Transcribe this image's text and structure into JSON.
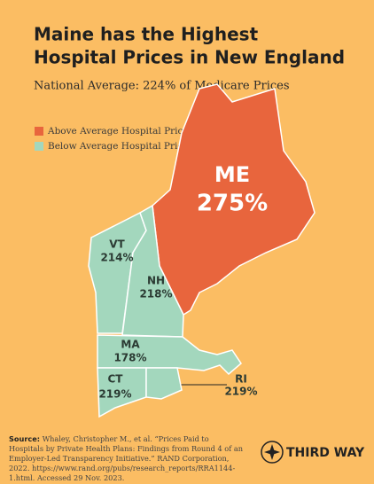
{
  "title": [
    "Maine has the Highest",
    "Hospital Prices in New England"
  ],
  "subtitle": "National Average: 224% of Medicare Prices",
  "national_average": 224,
  "legend": [
    {
      "label": "Above Average Hospital Prices",
      "color": "#e8653d"
    },
    {
      "label": "Below Average Hospital Prices",
      "color": "#a3d7bd"
    }
  ],
  "states": [
    {
      "name": "ME",
      "value": 275,
      "value_label": "275%"
    },
    {
      "name": "VT",
      "value": 214,
      "value_label": "214%"
    },
    {
      "name": "NH",
      "value": 218,
      "value_label": "218%"
    },
    {
      "name": "MA",
      "value": 178,
      "value_label": "178%"
    },
    {
      "name": "CT",
      "value": 219,
      "value_label": "219%"
    },
    {
      "name": "RI",
      "value": 219,
      "value_label": "219%"
    }
  ],
  "source": {
    "label": "Source:",
    "text": "Whaley, Christopher M., et al. “Prices Paid to Hospitals by Private Health Plans: Findings from Round 4 of an Employer-Led Transparency Initiative.” RAND Corporation, 2022. https://www.rand.org/pubs/research_reports/RRA1144-1.html. Accessed 29 Nov. 2023."
  },
  "logo": "THIRD WAY"
}
